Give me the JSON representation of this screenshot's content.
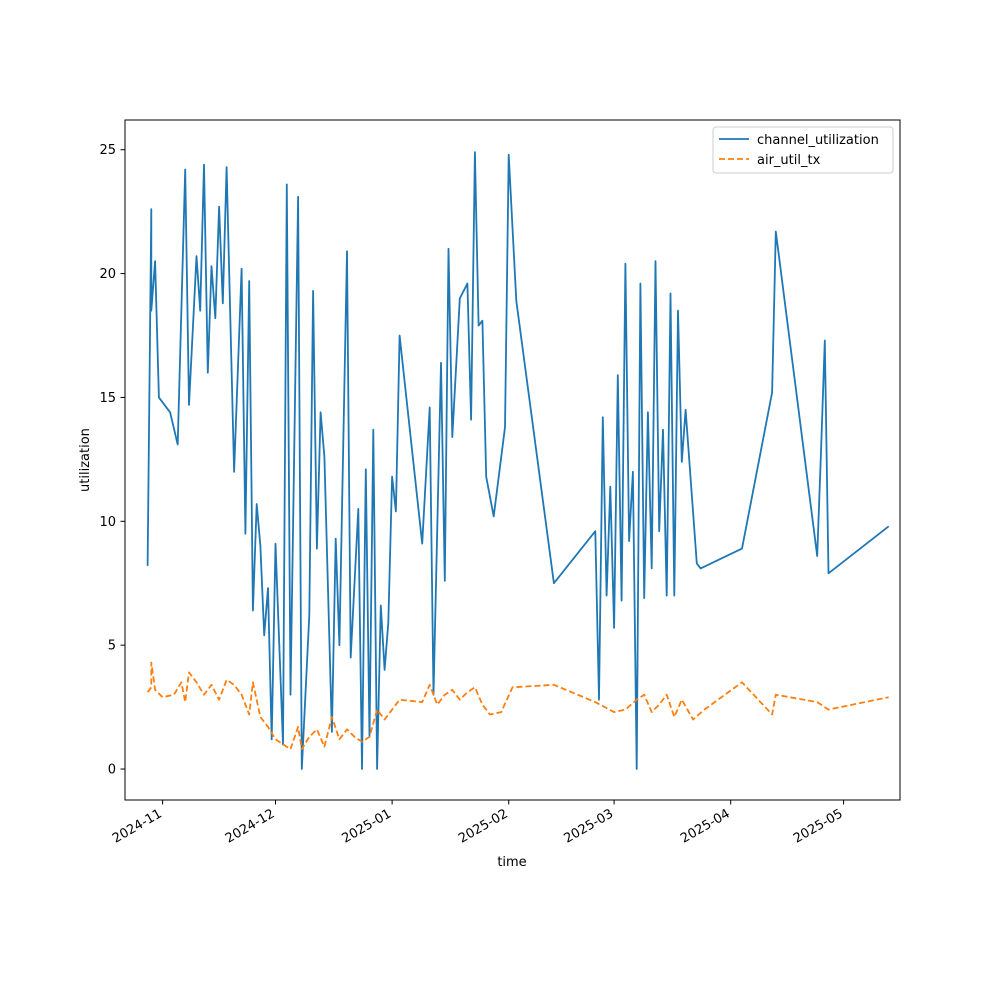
{
  "chart_data": {
    "type": "line",
    "title": "",
    "xlabel": "time",
    "ylabel": "utilization",
    "xlim": [
      "2024-10-22",
      "2025-05-16"
    ],
    "ylim": [
      -1.25,
      26.2
    ],
    "xticks": [
      {
        "date": "2024-11-01",
        "label": "2024-11"
      },
      {
        "date": "2024-12-01",
        "label": "2024-12"
      },
      {
        "date": "2025-01-01",
        "label": "2025-01"
      },
      {
        "date": "2025-02-01",
        "label": "2025-02"
      },
      {
        "date": "2025-03-01",
        "label": "2025-03"
      },
      {
        "date": "2025-04-01",
        "label": "2025-04"
      },
      {
        "date": "2025-05-01",
        "label": "2025-05"
      }
    ],
    "yticks": [
      0,
      5,
      10,
      15,
      20,
      25
    ],
    "grid": false,
    "legend": "top-right",
    "series": [
      {
        "name": "channel_utilization",
        "color": "#1f77b4",
        "style": "solid",
        "points": [
          [
            "2024-10-28",
            8.2
          ],
          [
            "2024-10-29",
            22.6
          ],
          [
            "2024-10-29",
            18.5
          ],
          [
            "2024-10-30",
            20.5
          ],
          [
            "2024-10-31",
            15.0
          ],
          [
            "2024-11-03",
            14.4
          ],
          [
            "2024-11-05",
            13.1
          ],
          [
            "2024-11-07",
            24.2
          ],
          [
            "2024-11-08",
            14.7
          ],
          [
            "2024-11-10",
            20.7
          ],
          [
            "2024-11-11",
            18.5
          ],
          [
            "2024-11-12",
            24.4
          ],
          [
            "2024-11-13",
            16.0
          ],
          [
            "2024-11-14",
            20.3
          ],
          [
            "2024-11-15",
            18.2
          ],
          [
            "2024-11-16",
            22.7
          ],
          [
            "2024-11-17",
            18.8
          ],
          [
            "2024-11-18",
            24.3
          ],
          [
            "2024-11-20",
            12.0
          ],
          [
            "2024-11-22",
            20.2
          ],
          [
            "2024-11-23",
            9.5
          ],
          [
            "2024-11-24",
            19.7
          ],
          [
            "2024-11-25",
            6.4
          ],
          [
            "2024-11-26",
            10.7
          ],
          [
            "2024-11-27",
            9.0
          ],
          [
            "2024-11-28",
            5.4
          ],
          [
            "2024-11-29",
            7.3
          ],
          [
            "2024-11-30",
            1.2
          ],
          [
            "2024-12-01",
            9.1
          ],
          [
            "2024-12-03",
            1.0
          ],
          [
            "2024-12-04",
            23.6
          ],
          [
            "2024-12-05",
            3.0
          ],
          [
            "2024-12-07",
            23.1
          ],
          [
            "2024-12-08",
            0.0
          ],
          [
            "2024-12-10",
            6.2
          ],
          [
            "2024-12-11",
            19.3
          ],
          [
            "2024-12-12",
            8.9
          ],
          [
            "2024-12-13",
            14.4
          ],
          [
            "2024-12-14",
            12.6
          ],
          [
            "2024-12-16",
            1.5
          ],
          [
            "2024-12-17",
            9.3
          ],
          [
            "2024-12-18",
            5.0
          ],
          [
            "2024-12-19",
            13.0
          ],
          [
            "2024-12-20",
            20.9
          ],
          [
            "2024-12-21",
            4.5
          ],
          [
            "2024-12-23",
            10.5
          ],
          [
            "2024-12-24",
            0.0
          ],
          [
            "2024-12-25",
            12.1
          ],
          [
            "2024-12-26",
            1.3
          ],
          [
            "2024-12-27",
            13.7
          ],
          [
            "2024-12-28",
            0.0
          ],
          [
            "2024-12-29",
            6.6
          ],
          [
            "2024-12-30",
            4.0
          ],
          [
            "2024-12-31",
            5.9
          ],
          [
            "2025-01-01",
            11.8
          ],
          [
            "2025-01-02",
            10.4
          ],
          [
            "2025-01-03",
            17.5
          ],
          [
            "2025-01-09",
            9.1
          ],
          [
            "2025-01-11",
            14.6
          ],
          [
            "2025-01-12",
            3.0
          ],
          [
            "2025-01-14",
            16.4
          ],
          [
            "2025-01-15",
            7.6
          ],
          [
            "2025-01-16",
            21.0
          ],
          [
            "2025-01-17",
            13.4
          ],
          [
            "2025-01-19",
            19.0
          ],
          [
            "2025-01-21",
            19.6
          ],
          [
            "2025-01-22",
            14.1
          ],
          [
            "2025-01-23",
            24.9
          ],
          [
            "2025-01-24",
            17.9
          ],
          [
            "2025-01-25",
            18.1
          ],
          [
            "2025-01-26",
            11.8
          ],
          [
            "2025-01-28",
            10.2
          ],
          [
            "2025-01-31",
            13.8
          ],
          [
            "2025-02-01",
            24.8
          ],
          [
            "2025-02-03",
            18.9
          ],
          [
            "2025-02-13",
            7.5
          ],
          [
            "2025-02-24",
            9.6
          ],
          [
            "2025-02-25",
            2.8
          ],
          [
            "2025-02-26",
            14.2
          ],
          [
            "2025-02-27",
            7.0
          ],
          [
            "2025-02-28",
            11.4
          ],
          [
            "2025-03-01",
            5.7
          ],
          [
            "2025-03-02",
            15.9
          ],
          [
            "2025-03-03",
            6.8
          ],
          [
            "2025-03-04",
            20.4
          ],
          [
            "2025-03-05",
            9.2
          ],
          [
            "2025-03-06",
            12.0
          ],
          [
            "2025-03-07",
            0.0
          ],
          [
            "2025-03-08",
            19.6
          ],
          [
            "2025-03-09",
            6.9
          ],
          [
            "2025-03-10",
            14.4
          ],
          [
            "2025-03-11",
            8.1
          ],
          [
            "2025-03-12",
            20.5
          ],
          [
            "2025-03-13",
            9.6
          ],
          [
            "2025-03-14",
            13.7
          ],
          [
            "2025-03-15",
            7.0
          ],
          [
            "2025-03-16",
            19.2
          ],
          [
            "2025-03-17",
            7.0
          ],
          [
            "2025-03-18",
            18.5
          ],
          [
            "2025-03-19",
            12.4
          ],
          [
            "2025-03-20",
            14.5
          ],
          [
            "2025-03-23",
            8.3
          ],
          [
            "2025-03-24",
            8.1
          ],
          [
            "2025-04-04",
            8.9
          ],
          [
            "2025-04-12",
            15.2
          ],
          [
            "2025-04-13",
            21.7
          ],
          [
            "2025-04-24",
            8.6
          ],
          [
            "2025-04-25",
            12.8
          ],
          [
            "2025-04-26",
            17.3
          ],
          [
            "2025-04-27",
            7.9
          ],
          [
            "2025-05-13",
            9.8
          ]
        ]
      },
      {
        "name": "air_util_tx",
        "color": "#ff7f0e",
        "style": "dashed",
        "points": [
          [
            "2024-10-28",
            3.1
          ],
          [
            "2024-10-29",
            3.3
          ],
          [
            "2024-10-29",
            4.3
          ],
          [
            "2024-10-30",
            3.2
          ],
          [
            "2024-11-01",
            2.9
          ],
          [
            "2024-11-04",
            3.0
          ],
          [
            "2024-11-06",
            3.5
          ],
          [
            "2024-11-07",
            2.7
          ],
          [
            "2024-11-08",
            3.9
          ],
          [
            "2024-11-10",
            3.5
          ],
          [
            "2024-11-12",
            3.0
          ],
          [
            "2024-11-14",
            3.4
          ],
          [
            "2024-11-16",
            2.8
          ],
          [
            "2024-11-18",
            3.6
          ],
          [
            "2024-11-20",
            3.4
          ],
          [
            "2024-11-22",
            3.0
          ],
          [
            "2024-11-24",
            2.2
          ],
          [
            "2024-11-25",
            3.5
          ],
          [
            "2024-11-27",
            2.1
          ],
          [
            "2024-11-29",
            1.7
          ],
          [
            "2024-12-01",
            1.2
          ],
          [
            "2024-12-03",
            1.0
          ],
          [
            "2024-12-05",
            0.8
          ],
          [
            "2024-12-07",
            1.7
          ],
          [
            "2024-12-08",
            0.8
          ],
          [
            "2024-12-10",
            1.3
          ],
          [
            "2024-12-12",
            1.6
          ],
          [
            "2024-12-14",
            0.9
          ],
          [
            "2024-12-16",
            2.1
          ],
          [
            "2024-12-18",
            1.2
          ],
          [
            "2024-12-20",
            1.6
          ],
          [
            "2024-12-22",
            1.3
          ],
          [
            "2024-12-24",
            1.1
          ],
          [
            "2024-12-26",
            1.3
          ],
          [
            "2024-12-28",
            2.4
          ],
          [
            "2024-12-30",
            2.0
          ],
          [
            "2025-01-01",
            2.4
          ],
          [
            "2025-01-03",
            2.8
          ],
          [
            "2025-01-09",
            2.7
          ],
          [
            "2025-01-11",
            3.4
          ],
          [
            "2025-01-13",
            2.6
          ],
          [
            "2025-01-15",
            3.0
          ],
          [
            "2025-01-17",
            3.2
          ],
          [
            "2025-01-19",
            2.8
          ],
          [
            "2025-01-21",
            3.1
          ],
          [
            "2025-01-23",
            3.3
          ],
          [
            "2025-01-25",
            2.6
          ],
          [
            "2025-01-27",
            2.2
          ],
          [
            "2025-01-30",
            2.3
          ],
          [
            "2025-02-02",
            3.3
          ],
          [
            "2025-02-13",
            3.4
          ],
          [
            "2025-02-24",
            2.7
          ],
          [
            "2025-03-01",
            2.3
          ],
          [
            "2025-03-04",
            2.4
          ],
          [
            "2025-03-07",
            2.8
          ],
          [
            "2025-03-09",
            3.0
          ],
          [
            "2025-03-11",
            2.3
          ],
          [
            "2025-03-13",
            2.6
          ],
          [
            "2025-03-15",
            3.0
          ],
          [
            "2025-03-17",
            2.1
          ],
          [
            "2025-03-19",
            2.8
          ],
          [
            "2025-03-22",
            2.0
          ],
          [
            "2025-03-25",
            2.4
          ],
          [
            "2025-04-04",
            3.5
          ],
          [
            "2025-04-12",
            2.2
          ],
          [
            "2025-04-13",
            3.0
          ],
          [
            "2025-04-24",
            2.7
          ],
          [
            "2025-04-27",
            2.4
          ],
          [
            "2025-05-13",
            2.9
          ]
        ]
      }
    ]
  }
}
